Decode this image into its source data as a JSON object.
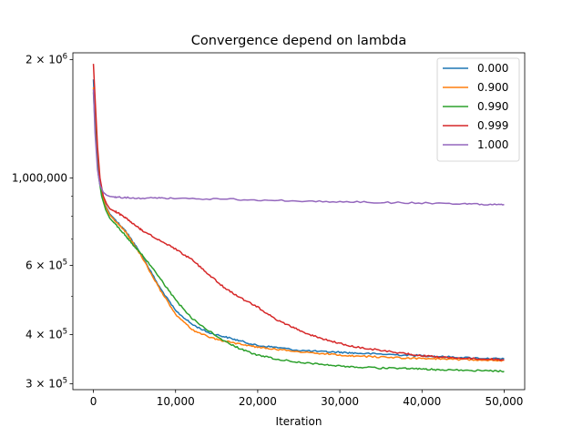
{
  "chart_data": {
    "type": "line",
    "title": "Convergence depend on lambda",
    "xlabel": "Iteration",
    "ylabel": "",
    "yscale": "log",
    "xlim": [
      -2500,
      52500
    ],
    "ylim": [
      290000,
      2080000
    ],
    "x_ticks": [
      {
        "value": 0,
        "label": "0"
      },
      {
        "value": 10000,
        "label": "10,000"
      },
      {
        "value": 20000,
        "label": "20,000"
      },
      {
        "value": 30000,
        "label": "30,000"
      },
      {
        "value": 40000,
        "label": "40,000"
      },
      {
        "value": 50000,
        "label": "50,000"
      }
    ],
    "y_ticks": [
      {
        "value": 300000,
        "label": "3 × 10",
        "exp": "5"
      },
      {
        "value": 400000,
        "label": "4 × 10",
        "exp": "5"
      },
      {
        "value": 600000,
        "label": "6 × 10",
        "exp": "5"
      },
      {
        "value": 1000000,
        "label": "1,000,000",
        "exp": ""
      },
      {
        "value": 2000000,
        "label": "2 × 10",
        "exp": "6"
      }
    ],
    "y_minor_ticks": [
      500000,
      700000,
      800000,
      900000
    ],
    "legend_position": "top-right",
    "series": [
      {
        "name": "0.000",
        "color": "#1f77b4",
        "x": [
          0,
          300,
          600,
          1000,
          1500,
          2000,
          3000,
          4000,
          5000,
          6000,
          8000,
          10000,
          12000,
          14000,
          16000,
          18000,
          20000,
          22000,
          25000,
          28000,
          30000,
          32000,
          35000,
          38000,
          40000,
          42000,
          45000,
          48000,
          50000
        ],
        "y": [
          1780000,
          1300000,
          1050000,
          920000,
          850000,
          810000,
          770000,
          730000,
          680000,
          630000,
          530000,
          460000,
          425000,
          405000,
          395000,
          385000,
          375000,
          372000,
          365000,
          362000,
          361000,
          359000,
          357000,
          355000,
          354000,
          352000,
          350000,
          348000,
          347000
        ]
      },
      {
        "name": "0.900",
        "color": "#ff7f0e",
        "x": [
          0,
          300,
          600,
          1000,
          1500,
          2000,
          3000,
          4000,
          5000,
          6000,
          8000,
          10000,
          12000,
          14000,
          16000,
          18000,
          20000,
          22000,
          25000,
          28000,
          30000,
          32000,
          35000,
          38000,
          40000,
          42000,
          45000,
          48000,
          50000
        ],
        "y": [
          1700000,
          1280000,
          1040000,
          915000,
          845000,
          805000,
          765000,
          725000,
          675000,
          625000,
          525000,
          450000,
          412000,
          395000,
          385000,
          378000,
          372000,
          368000,
          362000,
          358000,
          355000,
          353000,
          351000,
          349000,
          348000,
          347000,
          346000,
          345000,
          344000
        ]
      },
      {
        "name": "0.990",
        "color": "#2ca02c",
        "x": [
          0,
          300,
          600,
          1000,
          1500,
          2000,
          3000,
          4000,
          5000,
          6000,
          8000,
          10000,
          12000,
          14000,
          16000,
          18000,
          20000,
          22000,
          25000,
          28000,
          30000,
          32000,
          35000,
          38000,
          40000,
          42000,
          45000,
          48000,
          50000
        ],
        "y": [
          1650000,
          1250000,
          1020000,
          900000,
          830000,
          790000,
          750000,
          710000,
          670000,
          635000,
          560000,
          490000,
          440000,
          410000,
          385000,
          367000,
          355000,
          348000,
          340000,
          336000,
          333000,
          331000,
          329000,
          328000,
          327000,
          326000,
          325000,
          324000,
          323000
        ]
      },
      {
        "name": "0.999",
        "color": "#d62728",
        "x": [
          0,
          200,
          500,
          800,
          1200,
          1600,
          2000,
          3000,
          4000,
          5000,
          6000,
          8000,
          10000,
          12000,
          14000,
          16000,
          18000,
          20000,
          22000,
          24000,
          26000,
          28000,
          30000,
          32000,
          35000,
          38000,
          40000,
          42000,
          45000,
          48000,
          50000
        ],
        "y": [
          1950000,
          1600000,
          1200000,
          1000000,
          900000,
          860000,
          835000,
          815000,
          790000,
          760000,
          735000,
          695000,
          660000,
          620000,
          570000,
          525000,
          495000,
          470000,
          440000,
          420000,
          402000,
          390000,
          380000,
          372000,
          365000,
          358000,
          354000,
          351000,
          348000,
          347000,
          345000
        ]
      },
      {
        "name": "1.000",
        "color": "#9467bd",
        "x": [
          0,
          200,
          500,
          800,
          1200,
          1600,
          2000,
          3000,
          5000,
          8000,
          10000,
          15000,
          20000,
          25000,
          30000,
          35000,
          40000,
          45000,
          48000,
          50000
        ],
        "y": [
          1680000,
          1300000,
          1050000,
          960000,
          920000,
          905000,
          898000,
          893000,
          890000,
          888000,
          887000,
          884000,
          880000,
          875000,
          870000,
          867000,
          864000,
          860000,
          858000,
          857000
        ]
      }
    ]
  }
}
